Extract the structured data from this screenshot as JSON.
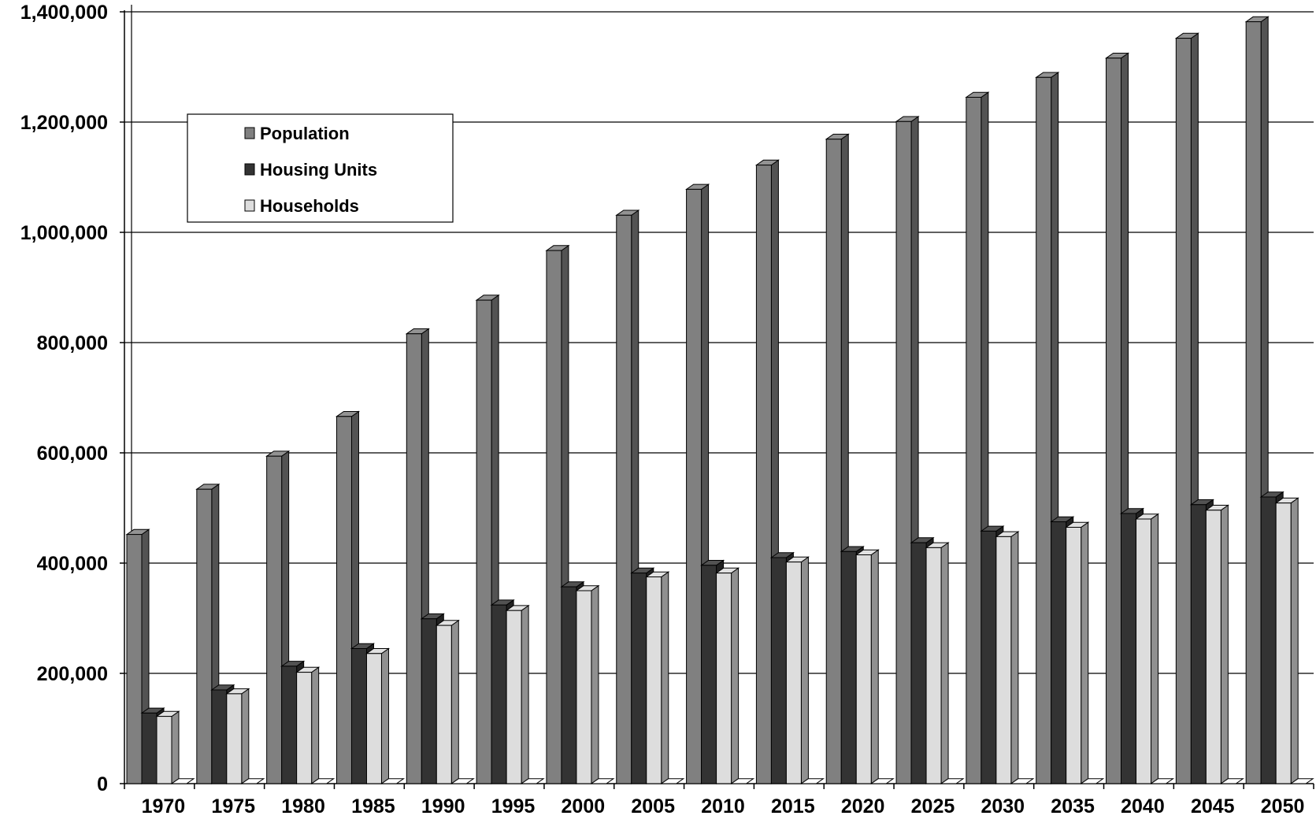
{
  "chart_data": {
    "type": "bar",
    "title": "",
    "xlabel": "",
    "ylabel": "",
    "categories": [
      "1970",
      "1975",
      "1980",
      "1985",
      "1990",
      "1995",
      "2000",
      "2005",
      "2010",
      "2015",
      "2020",
      "2025",
      "2030",
      "2035",
      "2040",
      "2045",
      "2050"
    ],
    "series": [
      {
        "name": "Population",
        "color": "#808080",
        "values": [
          452000,
          534000,
          594000,
          666000,
          816000,
          877000,
          967000,
          1031000,
          1078000,
          1122000,
          1169000,
          1201000,
          1245000,
          1281000,
          1316000,
          1352000,
          1382000
        ]
      },
      {
        "name": "Housing Units",
        "color": "#333333",
        "values": [
          128000,
          170000,
          213000,
          245000,
          299000,
          324000,
          357000,
          382000,
          396000,
          410000,
          421000,
          437000,
          458000,
          475000,
          490000,
          506000,
          520000
        ]
      },
      {
        "name": "Households",
        "color": "#dddddd",
        "values": [
          122000,
          163000,
          202000,
          236000,
          287000,
          314000,
          350000,
          375000,
          382000,
          402000,
          415000,
          428000,
          448000,
          465000,
          480000,
          496000,
          509000
        ]
      }
    ],
    "ylim": [
      0,
      1400000
    ],
    "yticks": [
      0,
      200000,
      400000,
      600000,
      800000,
      1000000,
      1200000,
      1400000
    ],
    "ytick_labels": [
      "0",
      "200,000",
      "400,000",
      "600,000",
      "800,000",
      "1,000,000",
      "1,200,000",
      "1,400,000"
    ],
    "grid": true,
    "legend_position": "top-left",
    "style": "3d-bar"
  }
}
